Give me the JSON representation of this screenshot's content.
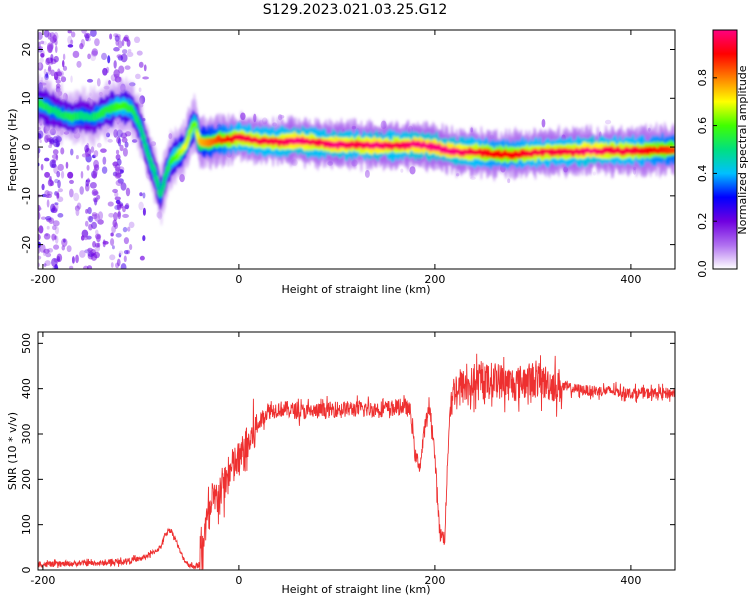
{
  "figure": {
    "title": "S129.2023.021.03.25.G12"
  },
  "colors": {
    "snr_line": "#ee3030",
    "axis": "#000000",
    "background": "#ffffff"
  },
  "chart_data": [
    {
      "type": "heatmap",
      "xlabel": "Height of straight line (km)",
      "ylabel": "Frequency (Hz)",
      "xlim": [
        -205,
        445
      ],
      "ylim": [
        -25,
        24
      ],
      "xticks": [
        -200,
        0,
        200,
        400
      ],
      "yticks": [
        -20,
        -10,
        0,
        10,
        20
      ],
      "grid": false,
      "colorbar": {
        "label": "Normalized spectral amplitude",
        "range": [
          0,
          1
        ],
        "ticks": [
          0.0,
          0.2,
          0.4,
          0.6,
          0.8
        ],
        "palette": [
          "#ffffff",
          "#b070f0",
          "#7000e0",
          "#0000ff",
          "#00c0ff",
          "#00e080",
          "#40ff00",
          "#ffff00",
          "#ff8000",
          "#ff0000",
          "#ff0080"
        ]
      },
      "ridge": {
        "x": [
          -205,
          -185,
          -170,
          -160,
          -150,
          -140,
          -130,
          -120,
          -110,
          -100,
          -95,
          -90,
          -85,
          -80,
          -75,
          -70,
          -65,
          -60,
          -55,
          -50,
          -45,
          -40,
          -30,
          -20,
          -10,
          0,
          20,
          40,
          60,
          80,
          100,
          120,
          140,
          160,
          180,
          200,
          220,
          240,
          260,
          280,
          300,
          320,
          340,
          360,
          380,
          400,
          420,
          445
        ],
        "y": [
          9,
          7,
          6,
          6.5,
          6,
          7,
          8,
          8.5,
          8,
          4,
          0,
          -3,
          -6,
          -10,
          -6,
          -3,
          -2,
          -1,
          0,
          3,
          5,
          1,
          1,
          1.5,
          1.5,
          2,
          1.2,
          1,
          1.3,
          0.8,
          0.5,
          0.5,
          0.3,
          0.3,
          0.5,
          0,
          -1,
          -1,
          -1.5,
          -1.5,
          -1.2,
          -1,
          -1,
          -0.8,
          -0.8,
          -0.8,
          -0.7,
          -0.5
        ],
        "amplitude": [
          0.5,
          0.45,
          0.5,
          0.45,
          0.45,
          0.5,
          0.5,
          0.55,
          0.5,
          0.45,
          0.45,
          0.45,
          0.45,
          0.45,
          0.45,
          0.5,
          0.55,
          0.6,
          0.65,
          0.6,
          0.55,
          0.7,
          0.75,
          0.8,
          0.85,
          0.9,
          0.9,
          0.9,
          0.95,
          0.9,
          0.95,
          0.9,
          0.95,
          0.9,
          0.95,
          0.95,
          0.95,
          0.9,
          0.85,
          0.85,
          0.9,
          0.9,
          0.9,
          0.95,
          0.9,
          0.9,
          0.85,
          0.8
        ]
      }
    },
    {
      "type": "line",
      "xlabel": "Height of straight line (km)",
      "ylabel": "SNR (10 * v/v)",
      "xlim": [
        -205,
        445
      ],
      "ylim": [
        0,
        525
      ],
      "xticks": [
        -200,
        0,
        200,
        400
      ],
      "yticks": [
        0,
        100,
        200,
        300,
        400,
        500
      ],
      "grid": false,
      "series": [
        {
          "x": [
            -205,
            -180,
            -160,
            -140,
            -120,
            -100,
            -90,
            -80,
            -75,
            -70,
            -65,
            -60,
            -55,
            -50,
            -45,
            -40,
            -35,
            -30,
            -25,
            -20,
            -15,
            -10,
            -5,
            0,
            5,
            10,
            15,
            20,
            25,
            30,
            40,
            50,
            60,
            80,
            100,
            120,
            140,
            160,
            170,
            175,
            180,
            185,
            190,
            195,
            200,
            205,
            210,
            215,
            220,
            240,
            260,
            280,
            300,
            320,
            340,
            360,
            380,
            400,
            420,
            445
          ],
          "values": [
            12,
            13,
            15,
            15,
            18,
            25,
            35,
            50,
            80,
            90,
            70,
            40,
            20,
            10,
            8,
            12,
            90,
            120,
            150,
            170,
            190,
            210,
            230,
            240,
            260,
            280,
            300,
            320,
            340,
            350,
            355,
            355,
            350,
            350,
            355,
            355,
            355,
            358,
            360,
            350,
            250,
            230,
            320,
            360,
            250,
            80,
            70,
            350,
            400,
            410,
            420,
            410,
            420,
            410,
            400,
            395,
            395,
            390,
            390,
            390
          ]
        }
      ]
    }
  ]
}
